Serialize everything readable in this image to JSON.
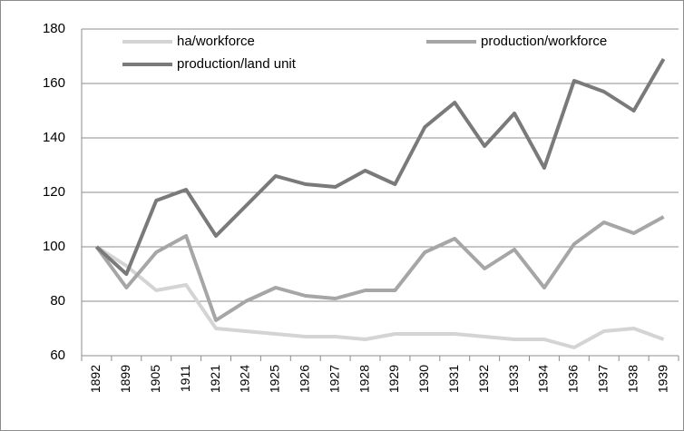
{
  "chart_data": {
    "type": "line",
    "categories": [
      "1892",
      "1899",
      "1905",
      "1911",
      "1921",
      "1924",
      "1925",
      "1926",
      "1927",
      "1928",
      "1929",
      "1930",
      "1931",
      "1932",
      "1933",
      "1934",
      "1936",
      "1937",
      "1938",
      "1939"
    ],
    "series": [
      {
        "name": "ha/workforce",
        "color": "#d4d4d4",
        "values": [
          100,
          93,
          84,
          86,
          70,
          69,
          68,
          67,
          67,
          66,
          68,
          68,
          68,
          67,
          66,
          66,
          63,
          69,
          70,
          66
        ]
      },
      {
        "name": "production/workforce",
        "color": "#a6a6a6",
        "values": [
          100,
          85,
          98,
          104,
          73,
          80,
          85,
          82,
          81,
          84,
          84,
          98,
          103,
          92,
          99,
          85,
          101,
          109,
          105,
          111
        ]
      },
      {
        "name": "production/land unit",
        "color": "#7a7a7a",
        "values": [
          100,
          90,
          117,
          121,
          104,
          115,
          126,
          123,
          122,
          128,
          123,
          144,
          153,
          137,
          149,
          129,
          161,
          157,
          150,
          169
        ]
      }
    ],
    "ylim": [
      60,
      180
    ],
    "yticks": [
      60,
      80,
      100,
      120,
      140,
      160,
      180
    ],
    "grid": true,
    "legend": "top"
  }
}
